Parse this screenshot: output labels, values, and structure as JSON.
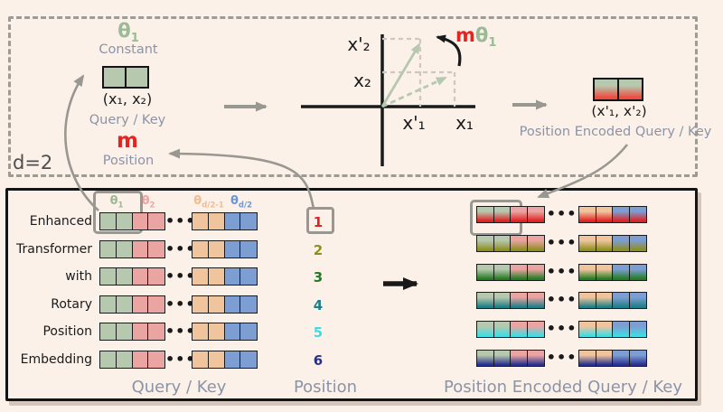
{
  "colors": {
    "background": "#fcf1e9",
    "ink": "#1a1a1a",
    "gray_label": "#8b93a7",
    "arrow_gray": "#999791",
    "cell_green": "#b6c8ae",
    "cell_pink": "#eaa4a1",
    "cell_orange": "#f0c59d",
    "cell_blue": "#7d9ed3",
    "grad_red": "#ef4b41",
    "red_accent": "#e8231f",
    "theta1": "#9cba95",
    "theta2": "#eca5a1",
    "theta_d21": "#f0bc92",
    "theta_d2": "#6f96d3",
    "position_colors": [
      "#e12020",
      "#8e8e20",
      "#237c23",
      "#1f7f88",
      "#3edde6",
      "#27308f"
    ]
  },
  "top_panel": {
    "d_label": "d=2",
    "theta_symbol": "θ",
    "theta_sub": "1",
    "constant_label": "Constant",
    "vector_label": "(x₁, x₂)",
    "query_key_label": "Query / Key",
    "m_label": "m",
    "m_position_label": "Position",
    "plot": {
      "x2p_label": "x'₂",
      "x2_label": "x₂",
      "x1p_label": "x'₁",
      "x1_label": "x₁",
      "rot_m": "m",
      "rot_theta": "θ",
      "rot_theta_sub": "1"
    },
    "encoded_vector_label": "(x'₁, x'₂)",
    "encoded_label": "Position Encoded Query / Key"
  },
  "bottom_panel": {
    "words": [
      "Enhanced",
      "Transformer",
      "with",
      "Rotary",
      "Position",
      "Embedding"
    ],
    "positions": [
      "1",
      "2",
      "3",
      "4",
      "5",
      "6"
    ],
    "ellipsis": "•••",
    "theta_headers": [
      {
        "symbol": "θ",
        "sub": "1"
      },
      {
        "symbol": "θ",
        "sub": "2"
      },
      {
        "symbol": "θ",
        "sub": "d/2-1"
      },
      {
        "symbol": "θ",
        "sub": "d/2"
      }
    ],
    "query_key_label": "Query / Key",
    "position_label": "Position",
    "encoded_label": "Position Encoded Query / Key"
  }
}
